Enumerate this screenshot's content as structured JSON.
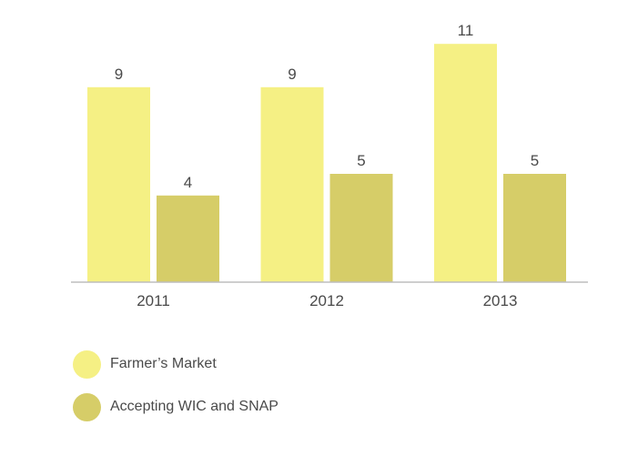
{
  "chart_data": {
    "type": "bar",
    "categories": [
      "2011",
      "2012",
      "2013"
    ],
    "series": [
      {
        "name": "Farmer’s Market",
        "values": [
          9,
          9,
          11
        ],
        "color": "#f5f084"
      },
      {
        "name": "Accepting WIC and SNAP",
        "values": [
          4,
          5,
          5
        ],
        "color": "#d6cd68"
      }
    ],
    "title": "",
    "xlabel": "",
    "ylabel": "",
    "ylim": [
      0,
      11
    ],
    "grid": false,
    "legend_position": "bottom-left",
    "data_labels": true
  },
  "colors": {
    "axis": "#bdbdbd",
    "text": "#4a4a4a"
  }
}
